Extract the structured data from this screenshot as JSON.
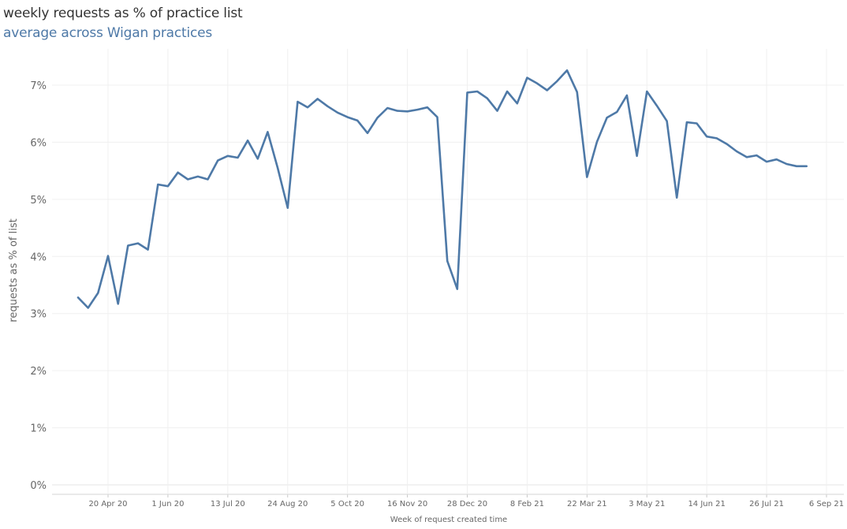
{
  "title": "weekly requests as % of practice list",
  "subtitle": "average across Wigan practices",
  "chart_data": {
    "type": "line",
    "title": "weekly requests as % of practice list",
    "subtitle": "average across Wigan practices",
    "xlabel": "Week of request created time",
    "ylabel": "requests as % of list",
    "ylim": [
      0,
      7.7
    ],
    "yticks": [
      0,
      1,
      2,
      3,
      4,
      5,
      6,
      7
    ],
    "ytick_labels": [
      "0%",
      "1%",
      "2%",
      "3%",
      "4%",
      "5%",
      "6%",
      "7%"
    ],
    "xticks": [
      {
        "date": "2020-04-20",
        "label": "20 Apr 20"
      },
      {
        "date": "2020-06-01",
        "label": "1 Jun 20"
      },
      {
        "date": "2020-07-13",
        "label": "13 Jul 20"
      },
      {
        "date": "2020-08-24",
        "label": "24 Aug 20"
      },
      {
        "date": "2020-10-05",
        "label": "5 Oct 20"
      },
      {
        "date": "2020-11-16",
        "label": "16 Nov 20"
      },
      {
        "date": "2020-12-28",
        "label": "28 Dec 20"
      },
      {
        "date": "2021-02-08",
        "label": "8 Feb 21"
      },
      {
        "date": "2021-03-22",
        "label": "22 Mar 21"
      },
      {
        "date": "2021-05-03",
        "label": "3 May 21"
      },
      {
        "date": "2021-06-14",
        "label": "14 Jun 21"
      },
      {
        "date": "2021-07-26",
        "label": "26 Jul 21"
      },
      {
        "date": "2021-09-06",
        "label": "6 Sep 21"
      }
    ],
    "grid": true,
    "line_color": "#4e79a7",
    "series": [
      {
        "x": [
          "2020-03-30",
          "2020-04-06",
          "2020-04-13",
          "2020-04-20",
          "2020-04-27",
          "2020-05-04",
          "2020-05-11",
          "2020-05-18",
          "2020-05-25",
          "2020-06-01",
          "2020-06-08",
          "2020-06-15",
          "2020-06-22",
          "2020-06-29",
          "2020-07-06",
          "2020-07-13",
          "2020-07-20",
          "2020-07-27",
          "2020-08-03",
          "2020-08-10",
          "2020-08-17",
          "2020-08-24",
          "2020-08-31",
          "2020-09-07",
          "2020-09-14",
          "2020-09-21",
          "2020-09-28",
          "2020-10-05",
          "2020-10-12",
          "2020-10-19",
          "2020-10-26",
          "2020-11-02",
          "2020-11-09",
          "2020-11-16",
          "2020-11-23",
          "2020-11-30",
          "2020-12-07",
          "2020-12-14",
          "2020-12-21",
          "2020-12-28",
          "2021-01-04",
          "2021-01-11",
          "2021-01-18",
          "2021-01-25",
          "2021-02-01",
          "2021-02-08",
          "2021-02-15",
          "2021-02-22",
          "2021-03-01",
          "2021-03-08",
          "2021-03-15",
          "2021-03-22",
          "2021-03-29",
          "2021-04-05",
          "2021-04-12",
          "2021-04-19",
          "2021-04-26",
          "2021-05-03",
          "2021-05-10",
          "2021-05-17",
          "2021-05-24",
          "2021-05-31",
          "2021-06-07",
          "2021-06-14",
          "2021-06-21",
          "2021-06-28",
          "2021-07-05",
          "2021-07-12",
          "2021-07-19",
          "2021-07-26",
          "2021-08-02",
          "2021-08-09",
          "2021-08-16",
          "2021-08-23"
        ],
        "values": [
          3.28,
          3.1,
          3.36,
          4.01,
          3.17,
          4.19,
          4.23,
          4.12,
          5.26,
          5.23,
          5.47,
          5.35,
          5.4,
          5.35,
          5.68,
          5.76,
          5.73,
          6.03,
          5.71,
          6.18,
          5.55,
          4.85,
          6.71,
          6.61,
          6.76,
          6.63,
          6.52,
          6.44,
          6.38,
          6.16,
          6.43,
          6.6,
          6.55,
          6.54,
          6.57,
          6.61,
          6.44,
          3.92,
          3.43,
          6.87,
          6.89,
          6.77,
          6.55,
          6.89,
          6.68,
          7.13,
          7.03,
          6.91,
          7.07,
          7.26,
          6.88,
          5.39,
          6.01,
          6.43,
          6.53,
          6.82,
          5.76,
          6.89,
          6.64,
          6.37,
          5.03,
          6.35,
          6.33,
          6.1,
          6.07,
          5.97,
          5.84,
          5.74,
          5.77,
          5.66,
          5.7,
          5.62,
          5.58,
          5.58
        ]
      }
    ]
  }
}
